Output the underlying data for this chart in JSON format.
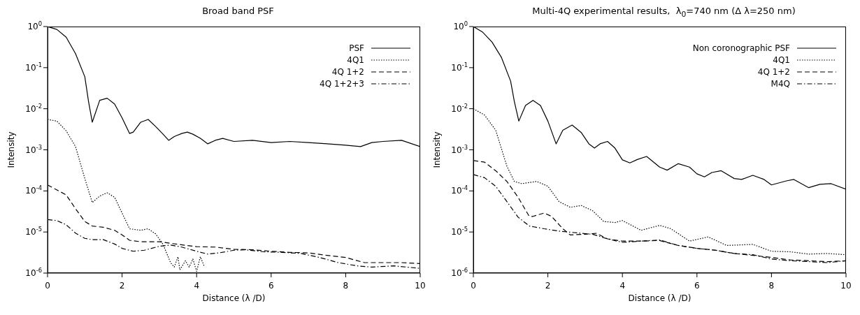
{
  "chart_data": [
    {
      "type": "line",
      "title": "Broad band PSF",
      "xlabel": "Distance (λ /D)",
      "ylabel": "Intensity",
      "log": "y",
      "legend": "top right",
      "marker": "none",
      "xlim": [
        0,
        10
      ],
      "xticks": [
        0,
        2,
        4,
        6,
        8,
        10
      ],
      "ylim": [
        1e-06,
        1
      ],
      "yticks": [
        {
          "value": 1e-06,
          "label": "10$^{-6}$"
        },
        {
          "value": 1e-05,
          "label": "10$^{-5}$"
        },
        {
          "value": 0.0001,
          "label": "10$^{-4}$"
        },
        {
          "value": 0.001,
          "label": "10$^{-3}$"
        },
        {
          "value": 0.01,
          "label": "10$^{-2}$"
        },
        {
          "value": 0.1,
          "label": "10$^{-1}$"
        },
        {
          "value": 1,
          "label": "10$^{0}$"
        }
      ],
      "series": [
        {
          "name": "PSF",
          "color": "#000000",
          "line_style": "solid",
          "x": [
            0,
            0.25,
            0.5,
            0.75,
            1,
            1.1,
            1.2,
            1.4,
            1.6,
            1.8,
            2,
            2.2,
            2.3,
            2.5,
            2.7,
            2.9,
            3.1,
            3.25,
            3.4,
            3.6,
            3.75,
            3.9,
            4.1,
            4.3,
            4.5,
            4.7,
            5,
            5.5,
            6,
            6.5,
            7,
            7.5,
            8,
            8.4,
            8.7,
            9,
            9.5,
            10
          ],
          "values": [
            1,
            0.85,
            0.55,
            0.22,
            0.06,
            0.015,
            0.0047,
            0.016,
            0.018,
            0.013,
            0.006,
            0.0025,
            0.0027,
            0.0047,
            0.0055,
            0.0037,
            0.0024,
            0.0017,
            0.0021,
            0.0025,
            0.0027,
            0.0024,
            0.0019,
            0.0014,
            0.0017,
            0.0019,
            0.0016,
            0.0017,
            0.0015,
            0.0016,
            0.0015,
            0.0014,
            0.0013,
            0.0012,
            0.0015,
            0.0016,
            0.0017,
            0.0012
          ]
        },
        {
          "name": "4Q1",
          "color": "#000000",
          "line_style": "dotted",
          "x": [
            0,
            0.25,
            0.5,
            0.75,
            1,
            1.2,
            1.4,
            1.6,
            1.8,
            2,
            2.2,
            2.5,
            2.7,
            2.9,
            3.1,
            3.3,
            3.4,
            3.5,
            3.55,
            3.7,
            3.8,
            3.9,
            4,
            4.1,
            4.2
          ],
          "values": [
            0.0055,
            0.005,
            0.0029,
            0.0012,
            0.0002,
            5.2e-05,
            7.5e-05,
            9e-05,
            7e-05,
            2.9e-05,
            1.2e-05,
            1.1e-05,
            1.2e-05,
            9e-06,
            5e-06,
            1.8e-06,
            1.4e-06,
            2.5e-06,
            1.2e-06,
            2e-06,
            1.4e-06,
            2.2e-06,
            1.1e-06,
            2.5e-06,
            1.5e-06
          ]
        },
        {
          "name": "4Q 1+2",
          "color": "#000000",
          "line_style": "dashed",
          "x": [
            0,
            0.5,
            0.75,
            1,
            1.2,
            1.5,
            1.8,
            2,
            2.2,
            2.5,
            3,
            3.5,
            4,
            4.5,
            5,
            5.5,
            6,
            6.5,
            7,
            7.5,
            8,
            8.5,
            9,
            9.5,
            10
          ],
          "values": [
            0.00014,
            8e-05,
            3.7e-05,
            1.8e-05,
            1.4e-05,
            1.3e-05,
            1.1e-05,
            8.5e-06,
            6.3e-06,
            5.8e-06,
            5.8e-06,
            5e-06,
            4.4e-06,
            4.3e-06,
            3.8e-06,
            3.7e-06,
            3.4e-06,
            3.2e-06,
            3.1e-06,
            2.7e-06,
            2.4e-06,
            1.8e-06,
            1.8e-06,
            1.8e-06,
            1.7e-06
          ]
        },
        {
          "name": "4Q 1+2+3",
          "color": "#000000",
          "line_style": "dashdot",
          "x": [
            0,
            0.25,
            0.5,
            0.75,
            1,
            1.2,
            1.5,
            1.8,
            2,
            2.3,
            2.6,
            3,
            3.3,
            3.6,
            4,
            4.3,
            4.6,
            5,
            5.3,
            5.8,
            6.3,
            6.8,
            7.3,
            7.8,
            8.3,
            8.7,
            9.3,
            10
          ],
          "values": [
            2e-05,
            1.9e-05,
            1.5e-05,
            9.4e-06,
            7e-06,
            6.5e-06,
            6.5e-06,
            5.1e-06,
            4e-06,
            3.4e-06,
            3.6e-06,
            4.5e-06,
            4.8e-06,
            4.3e-06,
            3.4e-06,
            2.9e-06,
            3.1e-06,
            3.6e-06,
            3.7e-06,
            3.3e-06,
            3.2e-06,
            3e-06,
            2.4e-06,
            1.8e-06,
            1.5e-06,
            1.4e-06,
            1.5e-06,
            1.3e-06
          ]
        }
      ]
    },
    {
      "type": "line",
      "title": "Multi-4Q experimental results,  λ$_{0}$=740 nm (Δ λ=250 nm)",
      "xlabel": "Distance (λ /D)",
      "ylabel": "Intensity",
      "log": "y",
      "legend": "top right",
      "marker": "none",
      "xlim": [
        0,
        10
      ],
      "xticks": [
        0,
        2,
        4,
        6,
        8,
        10
      ],
      "ylim": [
        1e-06,
        1
      ],
      "yticks": [
        {
          "value": 1e-06,
          "label": "10$^{-6}$"
        },
        {
          "value": 1e-05,
          "label": "10$^{-5}$"
        },
        {
          "value": 0.0001,
          "label": "10$^{-4}$"
        },
        {
          "value": 0.001,
          "label": "10$^{-3}$"
        },
        {
          "value": 0.01,
          "label": "10$^{-2}$"
        },
        {
          "value": 0.1,
          "label": "10$^{-1}$"
        },
        {
          "value": 1,
          "label": "10$^{0}$"
        }
      ],
      "series": [
        {
          "name": "Non coronographic PSF",
          "color": "#000000",
          "line_style": "solid",
          "x": [
            0,
            0.25,
            0.5,
            0.75,
            1,
            1.1,
            1.22,
            1.4,
            1.6,
            1.8,
            2,
            2.22,
            2.4,
            2.65,
            2.9,
            3.1,
            3.25,
            3.4,
            3.6,
            3.8,
            4,
            4.2,
            4.4,
            4.65,
            5,
            5.2,
            5.5,
            5.8,
            6,
            6.2,
            6.4,
            6.65,
            7,
            7.2,
            7.5,
            7.8,
            8,
            8.4,
            8.6,
            9,
            9.3,
            9.6,
            10
          ],
          "values": [
            1,
            0.73,
            0.42,
            0.18,
            0.047,
            0.015,
            0.005,
            0.012,
            0.016,
            0.012,
            0.005,
            0.0014,
            0.003,
            0.004,
            0.0026,
            0.0014,
            0.0011,
            0.0014,
            0.0016,
            0.0011,
            0.00057,
            0.00048,
            0.00058,
            0.00069,
            0.00038,
            0.00032,
            0.00046,
            0.00038,
            0.00026,
            0.00022,
            0.00028,
            0.00031,
            0.0002,
            0.00019,
            0.00024,
            0.00019,
            0.00014,
            0.000175,
            0.00019,
            0.00012,
            0.000145,
            0.00015,
            0.00011
          ]
        },
        {
          "name": "4Q1",
          "color": "#000000",
          "line_style": "dotted",
          "x": [
            0,
            0.3,
            0.6,
            0.9,
            1.1,
            1.3,
            1.7,
            2,
            2.3,
            2.6,
            2.9,
            3.2,
            3.5,
            3.8,
            4,
            4.3,
            4.5,
            5,
            5.3,
            5.8,
            6.3,
            6.8,
            7.5,
            8,
            8.5,
            9,
            9.5,
            10
          ],
          "values": [
            0.01,
            0.007,
            0.003,
            0.0004,
            0.00017,
            0.00015,
            0.00017,
            0.00013,
            5.5e-05,
            4e-05,
            4.4e-05,
            3.3e-05,
            1.8e-05,
            1.7e-05,
            1.9e-05,
            1.37e-05,
            1.1e-05,
            1.45e-05,
            1.2e-05,
            6e-06,
            7.6e-06,
            4.7e-06,
            5e-06,
            3.4e-06,
            3.3e-06,
            2.9e-06,
            3e-06,
            2.8e-06
          ]
        },
        {
          "name": "4Q 1+2",
          "color": "#000000",
          "line_style": "dashed",
          "x": [
            0,
            0.3,
            0.6,
            0.9,
            1.2,
            1.5,
            1.6,
            1.9,
            2.1,
            2.4,
            2.6,
            3,
            3.3,
            3.6,
            4,
            4.5,
            5,
            5.5,
            6,
            6.5,
            7,
            7.5,
            8,
            8.5,
            9,
            9.5,
            10
          ],
          "values": [
            0.00055,
            0.0005,
            0.00031,
            0.00017,
            7e-05,
            2.4e-05,
            2.4e-05,
            2.9e-05,
            2.4e-05,
            1.2e-05,
            8.5e-06,
            8.8e-06,
            9.3e-06,
            6.8e-06,
            6e-06,
            6e-06,
            6.2e-06,
            4.7e-06,
            4e-06,
            3.6e-06,
            3e-06,
            2.7e-06,
            2.4e-06,
            2.1e-06,
            2e-06,
            1.9e-06,
            2e-06
          ]
        },
        {
          "name": "M4Q",
          "color": "#000000",
          "line_style": "dashdot",
          "x": [
            0,
            0.3,
            0.6,
            0.9,
            1.2,
            1.5,
            1.9,
            2.3,
            2.8,
            3.2,
            3.6,
            4,
            4.5,
            5,
            5.5,
            6,
            6.5,
            7,
            7.5,
            8,
            8.5,
            9,
            9.5,
            10
          ],
          "values": [
            0.00025,
            0.00021,
            0.00013,
            5.5e-05,
            2.3e-05,
            1.4e-05,
            1.2e-05,
            1.05e-05,
            9.5e-06,
            8.8e-06,
            6.8e-06,
            5.6e-06,
            6e-06,
            6.4e-06,
            4.7e-06,
            4e-06,
            3.6e-06,
            3e-06,
            2.8e-06,
            2.2e-06,
            2e-06,
            1.9e-06,
            1.8e-06,
            2e-06
          ]
        }
      ]
    }
  ]
}
